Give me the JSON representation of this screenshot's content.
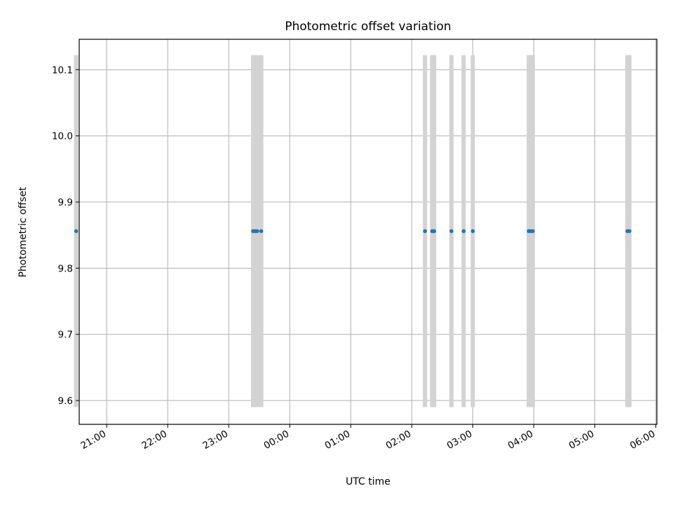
{
  "chart_data": {
    "type": "scatter",
    "title": "Photometric offset variation",
    "xlabel": "UTC time",
    "ylabel": "Photometric offset",
    "x_unit": "UTC",
    "xlim": [
      "20:33",
      "06:01"
    ],
    "ylim": [
      9.564,
      10.146
    ],
    "x_ticks": [
      "21:00",
      "22:00",
      "23:00",
      "00:00",
      "01:00",
      "02:00",
      "03:00",
      "04:00",
      "05:00",
      "06:00"
    ],
    "y_ticks": [
      "9.6",
      "9.7",
      "9.8",
      "9.9",
      "10.0",
      "10.1"
    ],
    "grid": true,
    "legend": "none",
    "series": [
      {
        "times": [
          "20:30",
          "23:24",
          "23:26",
          "23:28",
          "23:32",
          "02:13",
          "02:20",
          "02:22",
          "02:39",
          "02:51",
          "03:00",
          "03:55",
          "03:57",
          "03:59",
          "05:32",
          "05:34"
        ],
        "values": [
          9.856,
          9.856,
          9.856,
          9.856,
          9.856,
          9.856,
          9.856,
          9.856,
          9.856,
          9.856,
          9.856,
          9.856,
          9.856,
          9.856,
          9.856,
          9.856
        ],
        "error_low": 9.59,
        "error_high": 10.122
      }
    ],
    "colors": {
      "points": "#1f77b4",
      "error_bars": "#d3d3d3",
      "grid": "#b0b0b0",
      "axes": "#000000"
    }
  }
}
